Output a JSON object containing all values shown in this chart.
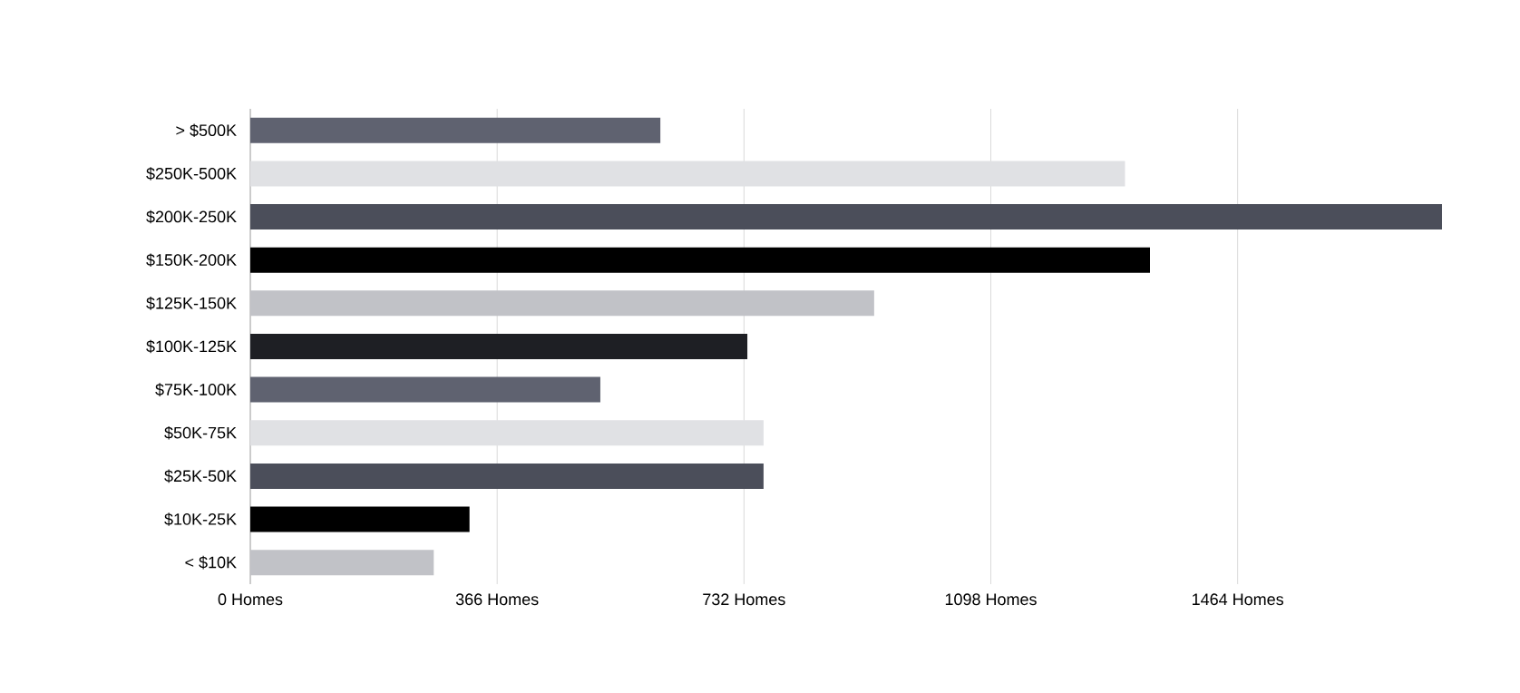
{
  "chart_data": {
    "type": "bar",
    "orientation": "horizontal",
    "categories": [
      "> $500K",
      "$250K-500K",
      "$200K-250K",
      "$150K-200K",
      "$125K-150K",
      "$100K-125K",
      "$75K-100K",
      "$50K-75K",
      "$25K-50K",
      "$10K-25K",
      "< $10K"
    ],
    "values": [
      608,
      1297,
      1767,
      1334,
      925,
      737,
      519,
      761,
      761,
      325,
      272
    ],
    "colors": [
      "#5f6270",
      "#e0e1e4",
      "#4b4e5a",
      "#000000",
      "#c1c2c7",
      "#1e1f24",
      "#5f6270",
      "#e0e1e4",
      "#4b4e5a",
      "#000000",
      "#c1c2c7"
    ],
    "xlim": [
      0,
      1767
    ],
    "xticks": [
      {
        "value": 0,
        "label": "0 Homes"
      },
      {
        "value": 366,
        "label": "366 Homes"
      },
      {
        "value": 732,
        "label": "732 Homes"
      },
      {
        "value": 1098,
        "label": "1098 Homes"
      },
      {
        "value": 1464,
        "label": "1464 Homes"
      }
    ],
    "grid": "x"
  }
}
